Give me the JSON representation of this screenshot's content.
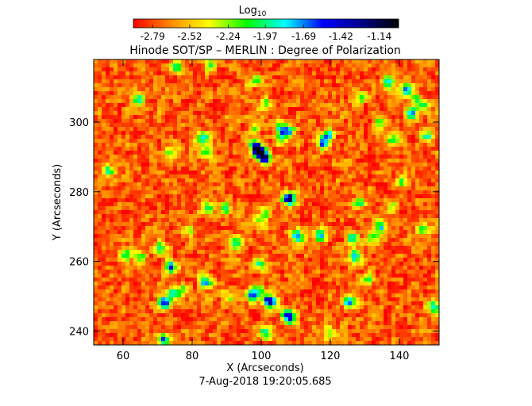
{
  "chart_data": {
    "type": "heatmap",
    "title": "Hinode SOT/SP – MERLIN : Degree of Polarization",
    "xlabel": "X (Arcseconds)",
    "ylabel": "Y (Arcseconds)",
    "timestamp": "7-Aug-2018 19:20:05.685",
    "xlim": [
      51.5,
      151.5
    ],
    "ylim": [
      236,
      318
    ],
    "xticks": [
      60,
      80,
      100,
      120,
      140
    ],
    "yticks": [
      240,
      260,
      280,
      300
    ],
    "colorbar": {
      "label": "Log",
      "label_sub": "10",
      "range": [
        -2.93,
        -1.0
      ],
      "ticks": [
        "-2.79",
        "-2.52",
        "-2.24",
        "-1.97",
        "-1.69",
        "-1.42",
        "-1.14"
      ],
      "colormap": [
        "#ff0000",
        "#ff8c00",
        "#ffff00",
        "#00ff00",
        "#00ffff",
        "#0000ff",
        "#00008b",
        "#000000"
      ]
    },
    "background_level": -2.75,
    "grid": false
  }
}
